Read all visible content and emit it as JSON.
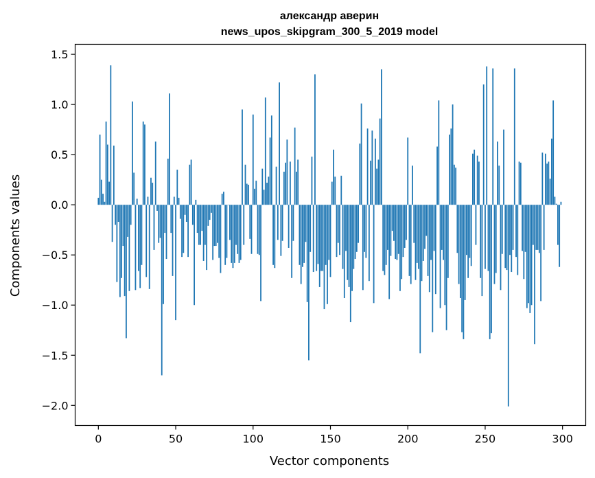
{
  "chart_data": {
    "type": "bar",
    "title_line1": "александр аверин",
    "title_line2": "news_upos_skipgram_300_5_2019 model",
    "xlabel": "Vector components",
    "ylabel": "Components values",
    "xlim": [
      -15,
      315
    ],
    "ylim": [
      -2.2,
      1.6
    ],
    "xticks": [
      0,
      50,
      100,
      150,
      200,
      250,
      300
    ],
    "xtick_labels": [
      "0",
      "50",
      "100",
      "150",
      "200",
      "250",
      "300"
    ],
    "yticks": [
      1.5,
      1.0,
      0.5,
      0.0,
      -0.5,
      -1.0,
      -1.5,
      -2.0
    ],
    "ytick_labels": [
      "1.5",
      "1.0",
      "0.5",
      "0.0",
      "−0.5",
      "−1.0",
      "−1.5",
      "−2.0"
    ],
    "bar_color": "#1f77b4",
    "values": [
      0.07,
      0.7,
      0.25,
      0.11,
      0.03,
      0.83,
      0.6,
      0.23,
      1.39,
      -0.37,
      0.59,
      -0.2,
      -0.77,
      -0.17,
      -0.92,
      -0.73,
      -0.41,
      -0.91,
      -1.33,
      -0.32,
      -0.86,
      -0.2,
      1.03,
      0.32,
      -0.85,
      0.06,
      -0.66,
      -0.83,
      -0.6,
      0.83,
      0.8,
      -0.72,
      0.08,
      -0.84,
      0.27,
      0.22,
      -0.45,
      0.63,
      -0.06,
      -0.38,
      -0.33,
      -1.7,
      -0.99,
      -0.28,
      -0.54,
      0.46,
      1.11,
      -0.28,
      -0.71,
      0.08,
      -1.15,
      0.35,
      0.07,
      -0.14,
      -0.52,
      -0.48,
      -0.1,
      -0.17,
      -0.52,
      0.4,
      0.45,
      -0.2,
      -1.0,
      0.05,
      -0.28,
      -0.4,
      -0.4,
      -0.26,
      -0.56,
      -0.4,
      -0.65,
      -0.21,
      -0.15,
      -0.08,
      -0.55,
      -0.41,
      -0.41,
      -0.38,
      -0.53,
      -0.68,
      0.11,
      0.13,
      -0.6,
      -0.53,
      0.0,
      -0.35,
      -0.58,
      -0.63,
      -0.58,
      -0.4,
      -0.49,
      -0.58,
      -0.55,
      0.95,
      -0.4,
      0.4,
      0.21,
      0.2,
      -0.34,
      -0.49,
      0.9,
      0.16,
      0.24,
      -0.49,
      -0.5,
      -0.96,
      0.36,
      0.15,
      1.07,
      0.22,
      0.28,
      0.67,
      0.89,
      -0.6,
      -0.63,
      0.38,
      -0.35,
      1.22,
      -0.51,
      -0.36,
      0.33,
      0.42,
      0.65,
      -0.43,
      0.43,
      -0.73,
      -0.36,
      0.77,
      0.33,
      0.45,
      -0.6,
      -0.79,
      -0.62,
      -0.58,
      -0.37,
      -0.97,
      -1.55,
      -0.47,
      0.48,
      -0.67,
      1.3,
      -0.66,
      -0.59,
      -0.82,
      -0.66,
      -0.66,
      -1.04,
      -0.6,
      -0.99,
      -0.55,
      -0.72,
      0.23,
      0.55,
      0.28,
      -0.52,
      -0.38,
      -0.5,
      0.29,
      -0.64,
      -0.93,
      -0.46,
      -0.75,
      -0.82,
      -1.17,
      -0.86,
      -0.64,
      -0.54,
      -0.47,
      -0.38,
      0.61,
      1.01,
      -0.85,
      -0.47,
      -0.53,
      0.76,
      -0.76,
      0.44,
      0.74,
      -0.98,
      0.66,
      0.36,
      0.45,
      0.86,
      1.35,
      -0.66,
      -0.7,
      -0.6,
      -0.45,
      -0.94,
      -0.51,
      -0.26,
      -0.36,
      -0.54,
      -0.55,
      -0.49,
      -0.86,
      -0.74,
      -0.52,
      -0.43,
      -0.35,
      0.67,
      -0.71,
      -0.79,
      0.39,
      -0.38,
      -0.75,
      -0.58,
      -0.64,
      -1.48,
      -0.76,
      -0.56,
      -0.44,
      -0.31,
      -0.71,
      -0.87,
      -0.55,
      -1.27,
      -0.46,
      -0.89,
      0.58,
      1.04,
      -1.03,
      -0.45,
      -0.55,
      -1.0,
      -1.25,
      -0.73,
      0.7,
      0.76,
      1.0,
      0.4,
      0.37,
      -0.48,
      -0.79,
      -0.93,
      -1.27,
      -1.34,
      -0.95,
      -0.5,
      -0.73,
      -0.53,
      -0.61,
      0.51,
      0.55,
      -0.4,
      0.49,
      0.43,
      -0.73,
      -0.91,
      1.2,
      -0.64,
      1.38,
      -0.66,
      -1.34,
      -1.28,
      1.36,
      -0.79,
      -0.68,
      0.63,
      0.39,
      -0.85,
      -0.49,
      0.75,
      -0.63,
      -0.65,
      -2.01,
      -0.5,
      -0.67,
      -0.45,
      1.36,
      -0.52,
      -0.7,
      0.43,
      0.42,
      -0.46,
      -0.74,
      -0.47,
      -1.03,
      -0.98,
      -1.08,
      -1.0,
      -0.4,
      -1.39,
      -0.45,
      -0.45,
      -0.48,
      -0.96,
      0.52,
      -0.45,
      0.51,
      0.41,
      0.43,
      0.26,
      0.66,
      1.04,
      0.08,
      0.01,
      -0.4,
      -0.62,
      0.03
    ]
  }
}
